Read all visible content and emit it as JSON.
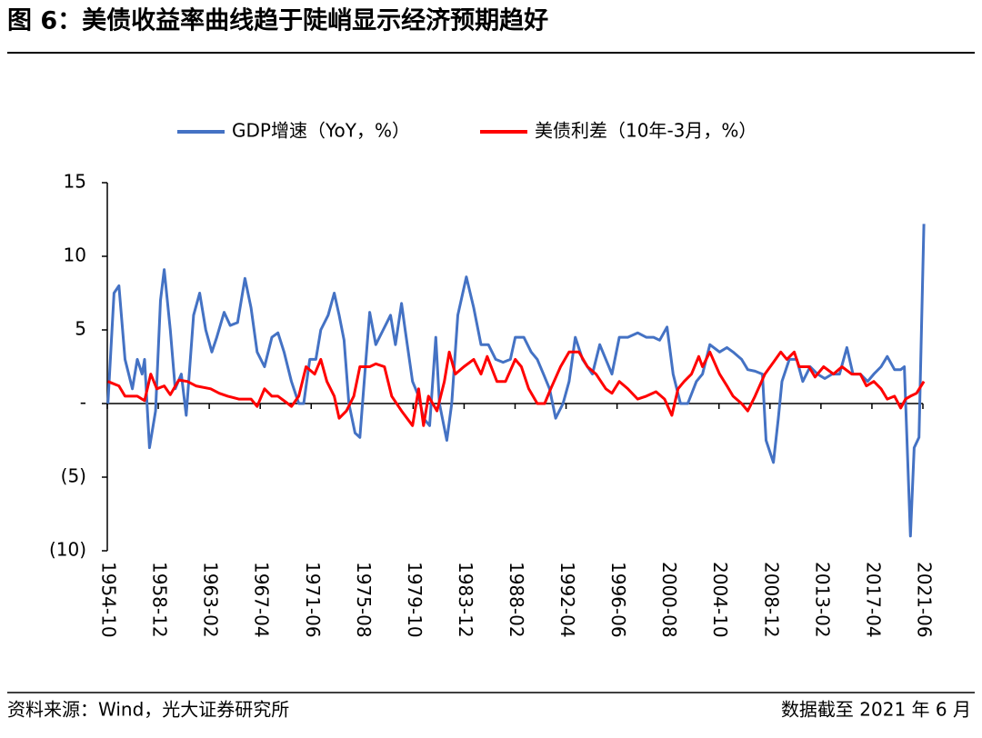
{
  "chart_data": {
    "type": "line",
    "title": "图 6：美债收益率曲线趋于陡峭显示经济预期趋好",
    "source": "资料来源：Wind，光大证券研究所",
    "note": "数据截至 2021 年 6 月",
    "xlim": [
      1954.75,
      2021.417
    ],
    "xticks": [
      {
        "value": 1954.75,
        "label": "1954-10"
      },
      {
        "value": 1958.917,
        "label": "1958-12"
      },
      {
        "value": 1963.083,
        "label": "1963-02"
      },
      {
        "value": 1967.25,
        "label": "1967-04"
      },
      {
        "value": 1971.417,
        "label": "1971-06"
      },
      {
        "value": 1975.583,
        "label": "1975-08"
      },
      {
        "value": 1979.75,
        "label": "1979-10"
      },
      {
        "value": 1983.917,
        "label": "1983-12"
      },
      {
        "value": 1988.083,
        "label": "1988-02"
      },
      {
        "value": 1992.25,
        "label": "1992-04"
      },
      {
        "value": 1996.417,
        "label": "1996-06"
      },
      {
        "value": 2000.583,
        "label": "2000-08"
      },
      {
        "value": 2004.75,
        "label": "2004-10"
      },
      {
        "value": 2008.917,
        "label": "2008-12"
      },
      {
        "value": 2013.083,
        "label": "2013-02"
      },
      {
        "value": 2017.25,
        "label": "2017-04"
      },
      {
        "value": 2021.417,
        "label": "2021-06"
      }
    ],
    "ylim": [
      -10,
      15
    ],
    "yticks": [
      15,
      10,
      5,
      {
        "value": 0,
        "label": "-"
      },
      {
        "value": -5,
        "label": "(5)"
      },
      {
        "value": -10,
        "label": "(10)"
      }
    ],
    "series": [
      {
        "name": "GDP增速（YoY，%）",
        "color": "#4472c4",
        "x": [
          1954.8,
          1955.3,
          1955.7,
          1956.2,
          1956.8,
          1957.2,
          1957.6,
          1957.8,
          1958.2,
          1958.7,
          1959.1,
          1959.4,
          1959.9,
          1960.3,
          1960.8,
          1961.2,
          1961.8,
          1962.3,
          1962.8,
          1963.3,
          1963.7,
          1964.3,
          1964.8,
          1965.4,
          1966.0,
          1966.5,
          1967.0,
          1967.6,
          1968.2,
          1968.7,
          1969.2,
          1969.8,
          1970.4,
          1970.8,
          1971.3,
          1971.8,
          1972.2,
          1972.8,
          1973.3,
          1973.7,
          1974.1,
          1974.5,
          1975.0,
          1975.4,
          1975.8,
          1976.2,
          1976.7,
          1977.3,
          1977.9,
          1978.3,
          1978.8,
          1979.1,
          1979.7,
          1980.2,
          1980.6,
          1981.1,
          1981.6,
          1981.9,
          1982.5,
          1982.9,
          1983.4,
          1984.1,
          1984.7,
          1985.3,
          1985.9,
          1986.5,
          1987.1,
          1987.7,
          1988.1,
          1988.8,
          1989.4,
          1989.9,
          1990.4,
          1990.9,
          1991.4,
          1992.0,
          1992.5,
          1993.0,
          1993.6,
          1994.4,
          1995.0,
          1995.5,
          1996.0,
          1996.6,
          1997.3,
          1998.1,
          1998.8,
          1999.4,
          1999.9,
          2000.5,
          2001.0,
          2001.6,
          2002.2,
          2002.9,
          2003.4,
          2004.0,
          2004.8,
          2005.4,
          2005.9,
          2006.6,
          2007.1,
          2007.7,
          2008.3,
          2008.6,
          2009.2,
          2009.6,
          2009.9,
          2010.5,
          2011.1,
          2011.6,
          2012.2,
          2012.8,
          2013.4,
          2014.0,
          2014.6,
          2015.2,
          2015.7,
          2016.3,
          2016.9,
          2017.4,
          2018.0,
          2018.5,
          2019.1,
          2019.6,
          2019.9,
          2020.4,
          2020.7,
          2021.1,
          2021.5
        ],
        "values": [
          0,
          7.5,
          8,
          3,
          1,
          3,
          2,
          3,
          -3,
          -0.5,
          7,
          9.1,
          5,
          1,
          2,
          -0.8,
          6,
          7.5,
          5,
          3.5,
          4.5,
          6.2,
          5.3,
          5.5,
          8.5,
          6.5,
          3.5,
          2.5,
          4.5,
          4.8,
          3.5,
          1.5,
          0,
          0,
          3,
          3,
          5,
          6,
          7.5,
          6,
          4.3,
          0,
          -2,
          -2.3,
          2,
          6.2,
          4,
          5,
          6,
          4,
          6.8,
          5,
          1.5,
          0.5,
          -1,
          -1.5,
          4.5,
          0,
          -2.5,
          0,
          6,
          8.6,
          6.5,
          4,
          4,
          3,
          2.8,
          3,
          4.5,
          4.5,
          3.5,
          3,
          2,
          1,
          -1,
          0,
          1.5,
          4.5,
          3,
          2,
          4,
          3,
          2,
          4.5,
          4.5,
          4.8,
          4.5,
          4.5,
          4.3,
          5.2,
          2,
          0,
          0,
          1.5,
          2,
          4,
          3.5,
          3.8,
          3.5,
          3,
          2.3,
          2.2,
          2,
          -2.5,
          -4,
          -1,
          1.5,
          3,
          3,
          1.5,
          2.5,
          2,
          1.7,
          2,
          2,
          3.8,
          2,
          2,
          1.5,
          2,
          2.5,
          3.2,
          2.3,
          2.3,
          2.5,
          -9,
          -3,
          -2.3,
          12.2
        ]
      },
      {
        "name": "美债利差（10年-3月，%）",
        "color": "#ff0000",
        "x": [
          1954.8,
          1955.7,
          1956.2,
          1957.2,
          1957.8,
          1958.3,
          1958.8,
          1959.4,
          1959.9,
          1960.6,
          1961.3,
          1962.0,
          1963.2,
          1963.9,
          1964.6,
          1965.5,
          1966.5,
          1967.0,
          1967.6,
          1968.2,
          1968.7,
          1969.5,
          1969.8,
          1970.4,
          1971.0,
          1971.7,
          1972.2,
          1972.7,
          1973.3,
          1973.7,
          1974.3,
          1974.9,
          1975.4,
          1976.2,
          1976.7,
          1977.4,
          1978.0,
          1978.8,
          1979.7,
          1980.2,
          1980.6,
          1981.0,
          1981.7,
          1982.3,
          1982.7,
          1983.2,
          1983.9,
          1984.7,
          1985.3,
          1985.8,
          1986.6,
          1987.3,
          1988.1,
          1988.6,
          1989.2,
          1989.9,
          1990.5,
          1991.0,
          1991.8,
          1992.5,
          1993.3,
          1994.0,
          1994.7,
          1995.5,
          1996.0,
          1996.6,
          1997.3,
          1998.1,
          1998.8,
          1999.6,
          2000.3,
          2000.9,
          2001.4,
          2001.9,
          2002.5,
          2003.1,
          2003.4,
          2004.0,
          2004.8,
          2005.4,
          2005.9,
          2006.6,
          2007.1,
          2007.7,
          2008.5,
          2009.2,
          2009.8,
          2010.3,
          2010.9,
          2011.3,
          2012.1,
          2012.6,
          2013.3,
          2014.1,
          2014.8,
          2015.6,
          2016.3,
          2016.8,
          2017.4,
          2018.0,
          2018.5,
          2019.1,
          2019.6,
          2020.0,
          2020.4,
          2020.9,
          2021.5
        ],
        "values": [
          1.5,
          1.2,
          0.5,
          0.5,
          0.2,
          2,
          1,
          1.2,
          0.6,
          1.6,
          1.5,
          1.2,
          1,
          0.7,
          0.5,
          0.3,
          0.3,
          -0.2,
          1,
          0.5,
          0.5,
          0,
          -0.2,
          0.5,
          2.5,
          2,
          3,
          1.5,
          0.5,
          -1,
          -0.5,
          0.5,
          2.5,
          2.5,
          2.7,
          2.5,
          0.5,
          -0.5,
          -1.5,
          1,
          -1.5,
          0.5,
          -0.5,
          1.5,
          3.5,
          2,
          2.5,
          3,
          2,
          3.2,
          1.5,
          1.5,
          3,
          2.5,
          1,
          0,
          0,
          1,
          2.5,
          3.5,
          3.5,
          2.5,
          2,
          1,
          0.7,
          1.5,
          1,
          0.3,
          0.5,
          0.8,
          0.3,
          -0.8,
          1,
          1.5,
          2,
          3.2,
          2.5,
          3.5,
          2,
          1.2,
          0.5,
          0,
          -0.5,
          0.5,
          2,
          2.8,
          3.5,
          3,
          3.5,
          2.5,
          2.5,
          1.8,
          2.5,
          2,
          2.5,
          2,
          2,
          1.2,
          1.5,
          1,
          0.3,
          0.5,
          -0.3,
          0.3,
          0.5,
          0.7,
          1.5
        ]
      }
    ]
  }
}
